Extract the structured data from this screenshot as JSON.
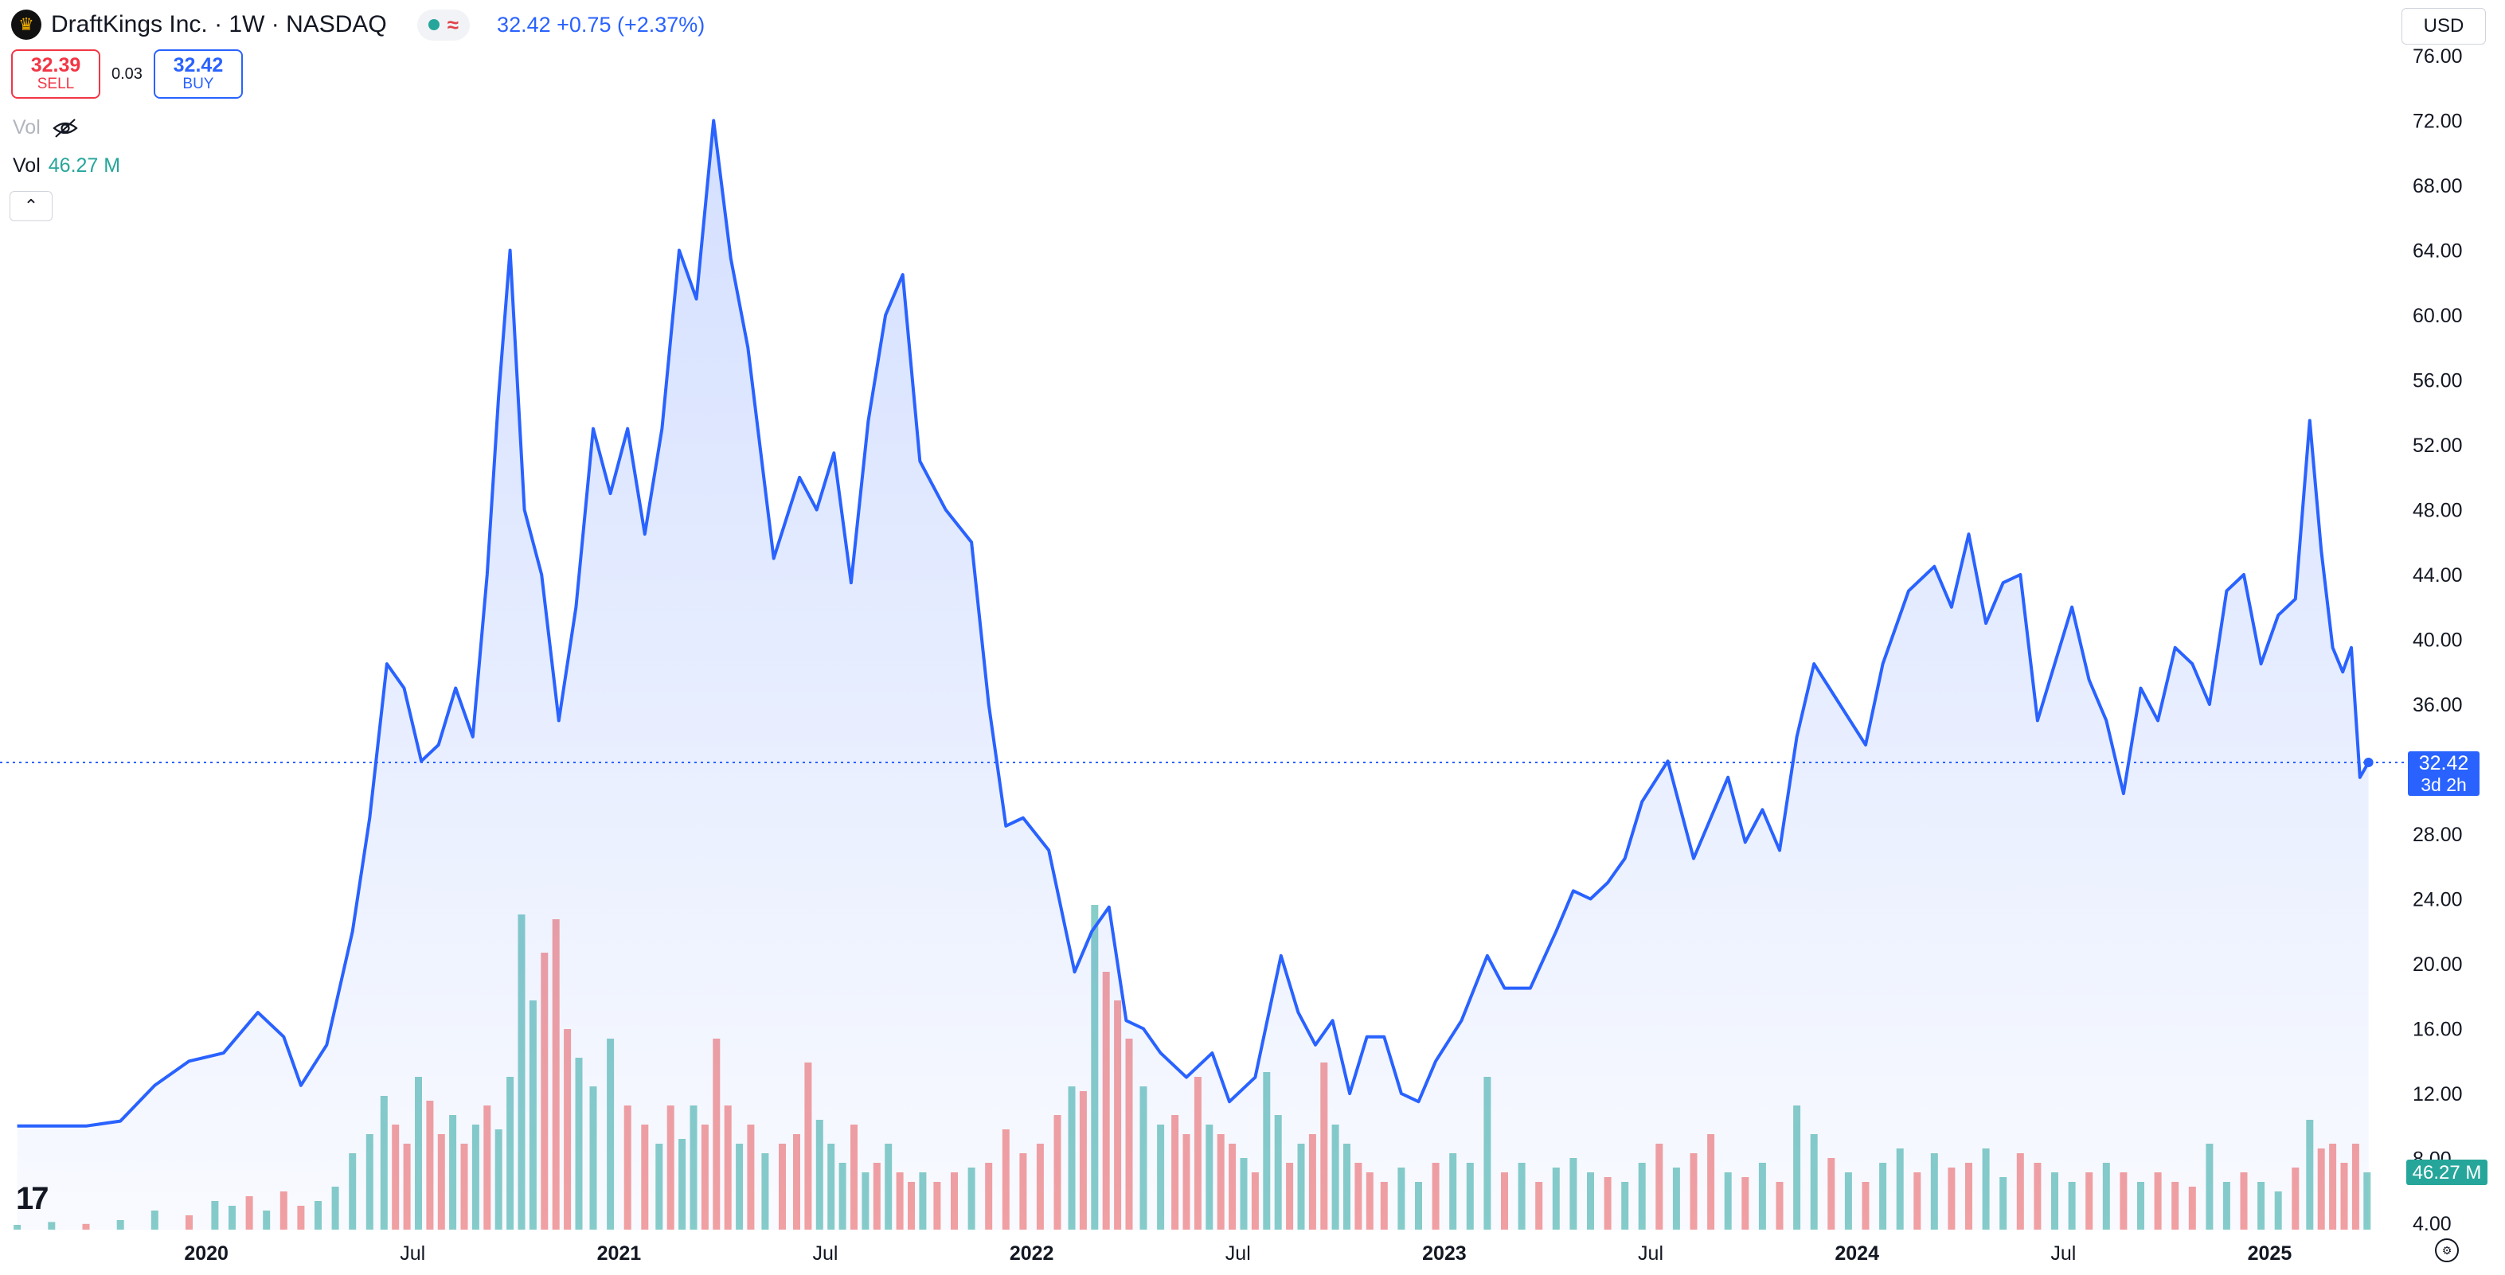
{
  "header": {
    "symbol_title": "DraftKings Inc. · 1W · NASDAQ",
    "wave_icon": "≈",
    "last_price": "32.42",
    "change": "+0.75 (+2.37%)"
  },
  "trade": {
    "sell_price": "32.39",
    "sell_label": "SELL",
    "spread": "0.03",
    "buy_price": "32.42",
    "buy_label": "BUY"
  },
  "volume_legend": {
    "label_hidden": "Vol",
    "label": "Vol",
    "value": "46.27 M"
  },
  "currency": "USD",
  "price_tag": {
    "price": "32.42",
    "countdown": "3d 2h"
  },
  "volume_tag": "46.27 M",
  "colors": {
    "line": "#2962ff",
    "up": "#26a69a",
    "down": "#ef5350"
  },
  "chart_data": {
    "type": "area",
    "y_ticks": [
      "4.00",
      "8.00",
      "12.00",
      "16.00",
      "20.00",
      "24.00",
      "28.00",
      "32.00",
      "36.00",
      "40.00",
      "44.00",
      "48.00",
      "52.00",
      "56.00",
      "60.00",
      "64.00",
      "68.00",
      "72.00",
      "76.00"
    ],
    "ylim": [
      4,
      76
    ],
    "x_ticks": [
      {
        "label": "2020",
        "date": "2020-01"
      },
      {
        "label": "Jul",
        "date": "2020-07"
      },
      {
        "label": "2021",
        "date": "2021-01"
      },
      {
        "label": "Jul",
        "date": "2021-07"
      },
      {
        "label": "2022",
        "date": "2022-01"
      },
      {
        "label": "Jul",
        "date": "2022-07"
      },
      {
        "label": "2023",
        "date": "2023-01"
      },
      {
        "label": "Jul",
        "date": "2023-07"
      },
      {
        "label": "2024",
        "date": "2024-01"
      },
      {
        "label": "Jul",
        "date": "2024-07"
      },
      {
        "label": "2025",
        "date": "2025-01"
      }
    ],
    "xlim": [
      "2019-07",
      "2025-04"
    ],
    "price_series": [
      [
        "2019-07",
        10.0
      ],
      [
        "2019-09",
        10.0
      ],
      [
        "2019-10",
        10.3
      ],
      [
        "2019-11",
        12.5
      ],
      [
        "2019-12",
        14.0
      ],
      [
        "2020-01",
        14.5
      ],
      [
        "2020-02",
        17.0
      ],
      [
        "2020-03",
        15.5
      ],
      [
        "2020-03",
        12.5
      ],
      [
        "2020-04",
        15.0
      ],
      [
        "2020-05",
        22.0
      ],
      [
        "2020-05",
        29.0
      ],
      [
        "2020-06",
        38.5
      ],
      [
        "2020-06",
        37.0
      ],
      [
        "2020-07",
        32.5
      ],
      [
        "2020-07",
        33.5
      ],
      [
        "2020-08",
        37.0
      ],
      [
        "2020-08",
        34.0
      ],
      [
        "2020-09",
        44.0
      ],
      [
        "2020-09",
        55.0
      ],
      [
        "2020-09",
        64.0
      ],
      [
        "2020-10",
        48.0
      ],
      [
        "2020-10",
        44.0
      ],
      [
        "2020-11",
        35.0
      ],
      [
        "2020-11",
        42.0
      ],
      [
        "2020-12",
        53.0
      ],
      [
        "2020-12",
        49.0
      ],
      [
        "2021-01",
        53.0
      ],
      [
        "2021-01",
        46.5
      ],
      [
        "2021-02",
        53.0
      ],
      [
        "2021-02",
        64.0
      ],
      [
        "2021-03",
        61.0
      ],
      [
        "2021-03",
        72.0
      ],
      [
        "2021-04",
        63.5
      ],
      [
        "2021-04",
        58.0
      ],
      [
        "2021-05",
        45.0
      ],
      [
        "2021-06",
        50.0
      ],
      [
        "2021-06",
        48.0
      ],
      [
        "2021-07",
        51.5
      ],
      [
        "2021-07",
        43.5
      ],
      [
        "2021-08",
        53.5
      ],
      [
        "2021-08",
        60.0
      ],
      [
        "2021-09",
        62.5
      ],
      [
        "2021-09",
        51.0
      ],
      [
        "2021-10",
        48.0
      ],
      [
        "2021-11",
        46.0
      ],
      [
        "2021-11",
        36.0
      ],
      [
        "2021-12",
        28.5
      ],
      [
        "2021-12",
        29.0
      ],
      [
        "2022-01",
        27.0
      ],
      [
        "2022-02",
        19.5
      ],
      [
        "2022-02",
        22.0
      ],
      [
        "2022-03",
        23.5
      ],
      [
        "2022-03",
        16.5
      ],
      [
        "2022-04",
        16.0
      ],
      [
        "2022-04",
        14.5
      ],
      [
        "2022-05",
        13.0
      ],
      [
        "2022-06",
        14.5
      ],
      [
        "2022-06",
        11.5
      ],
      [
        "2022-07",
        13.0
      ],
      [
        "2022-08",
        20.5
      ],
      [
        "2022-08",
        17.0
      ],
      [
        "2022-09",
        15.0
      ],
      [
        "2022-09",
        16.5
      ],
      [
        "2022-10",
        12.0
      ],
      [
        "2022-10",
        15.5
      ],
      [
        "2022-11",
        15.5
      ],
      [
        "2022-11",
        12.0
      ],
      [
        "2022-12",
        11.5
      ],
      [
        "2022-12",
        14.0
      ],
      [
        "2023-01",
        16.5
      ],
      [
        "2023-02",
        20.5
      ],
      [
        "2023-02",
        18.5
      ],
      [
        "2023-03",
        18.5
      ],
      [
        "2023-04",
        22.0
      ],
      [
        "2023-04",
        24.5
      ],
      [
        "2023-05",
        24.0
      ],
      [
        "2023-05",
        25.0
      ],
      [
        "2023-06",
        26.5
      ],
      [
        "2023-06",
        30.0
      ],
      [
        "2023-07",
        32.5
      ],
      [
        "2023-08",
        26.5
      ],
      [
        "2023-08",
        29.0
      ],
      [
        "2023-09",
        31.5
      ],
      [
        "2023-09",
        27.5
      ],
      [
        "2023-10",
        29.5
      ],
      [
        "2023-10",
        27.0
      ],
      [
        "2023-11",
        34.0
      ],
      [
        "2023-11",
        38.5
      ],
      [
        "2023-12",
        36.0
      ],
      [
        "2024-01",
        33.5
      ],
      [
        "2024-01",
        38.5
      ],
      [
        "2024-02",
        43.0
      ],
      [
        "2024-03",
        44.5
      ],
      [
        "2024-03",
        42.0
      ],
      [
        "2024-04",
        46.5
      ],
      [
        "2024-04",
        41.0
      ],
      [
        "2024-05",
        43.5
      ],
      [
        "2024-05",
        44.0
      ],
      [
        "2024-06",
        35.0
      ],
      [
        "2024-06",
        38.5
      ],
      [
        "2024-07",
        42.0
      ],
      [
        "2024-07",
        37.5
      ],
      [
        "2024-08",
        35.0
      ],
      [
        "2024-08",
        30.5
      ],
      [
        "2024-09",
        37.0
      ],
      [
        "2024-09",
        35.0
      ],
      [
        "2024-10",
        39.5
      ],
      [
        "2024-10",
        38.5
      ],
      [
        "2024-11",
        36.0
      ],
      [
        "2024-11",
        43.0
      ],
      [
        "2024-12",
        44.0
      ],
      [
        "2024-12",
        38.5
      ],
      [
        "2025-01",
        41.5
      ],
      [
        "2025-01",
        42.5
      ],
      [
        "2025-02",
        53.5
      ],
      [
        "2025-02",
        45.5
      ],
      [
        "2025-02",
        39.5
      ],
      [
        "2025-03",
        38.0
      ],
      [
        "2025-03",
        39.5
      ],
      [
        "2025-03",
        31.5
      ],
      [
        "2025-03",
        32.42
      ]
    ],
    "volume_series": [
      [
        "2019-07",
        0.5,
        1
      ],
      [
        "2019-08",
        0.8,
        1
      ],
      [
        "2019-09",
        0.6,
        0
      ],
      [
        "2019-10",
        1.0,
        1
      ],
      [
        "2019-11",
        2.0,
        1
      ],
      [
        "2019-12",
        1.5,
        0
      ],
      [
        "2020-01",
        3.0,
        1
      ],
      [
        "2020-01",
        2.5,
        1
      ],
      [
        "2020-02",
        3.5,
        0
      ],
      [
        "2020-02",
        2.0,
        1
      ],
      [
        "2020-03",
        4.0,
        0
      ],
      [
        "2020-03",
        2.5,
        0
      ],
      [
        "2020-04",
        3.0,
        1
      ],
      [
        "2020-04",
        4.5,
        1
      ],
      [
        "2020-05",
        8.0,
        1
      ],
      [
        "2020-05",
        10.0,
        1
      ],
      [
        "2020-06",
        14.0,
        1
      ],
      [
        "2020-06",
        11.0,
        0
      ],
      [
        "2020-06",
        9.0,
        0
      ],
      [
        "2020-07",
        16.0,
        1
      ],
      [
        "2020-07",
        13.5,
        0
      ],
      [
        "2020-07",
        10.0,
        0
      ],
      [
        "2020-08",
        12.0,
        1
      ],
      [
        "2020-08",
        9.0,
        0
      ],
      [
        "2020-08",
        11.0,
        1
      ],
      [
        "2020-09",
        13.0,
        0
      ],
      [
        "2020-09",
        10.5,
        1
      ],
      [
        "2020-09",
        16.0,
        1
      ],
      [
        "2020-10",
        33.0,
        1
      ],
      [
        "2020-10",
        24.0,
        1
      ],
      [
        "2020-10",
        29.0,
        0
      ],
      [
        "2020-11",
        32.5,
        0
      ],
      [
        "2020-11",
        21.0,
        0
      ],
      [
        "2020-11",
        18.0,
        1
      ],
      [
        "2020-12",
        15.0,
        1
      ],
      [
        "2020-12",
        20.0,
        1
      ],
      [
        "2021-01",
        13.0,
        0
      ],
      [
        "2021-01",
        11.0,
        0
      ],
      [
        "2021-02",
        9.0,
        1
      ],
      [
        "2021-02",
        13.0,
        0
      ],
      [
        "2021-02",
        9.5,
        1
      ],
      [
        "2021-03",
        13.0,
        1
      ],
      [
        "2021-03",
        11.0,
        0
      ],
      [
        "2021-03",
        20.0,
        0
      ],
      [
        "2021-04",
        13.0,
        0
      ],
      [
        "2021-04",
        9.0,
        1
      ],
      [
        "2021-04",
        11.0,
        0
      ],
      [
        "2021-05",
        8.0,
        1
      ],
      [
        "2021-05",
        9.0,
        0
      ],
      [
        "2021-06",
        10.0,
        0
      ],
      [
        "2021-06",
        17.5,
        0
      ],
      [
        "2021-06",
        11.5,
        1
      ],
      [
        "2021-07",
        9.0,
        1
      ],
      [
        "2021-07",
        7.0,
        1
      ],
      [
        "2021-07",
        11.0,
        0
      ],
      [
        "2021-08",
        6.0,
        1
      ],
      [
        "2021-08",
        7.0,
        0
      ],
      [
        "2021-08",
        9.0,
        1
      ],
      [
        "2021-09",
        6.0,
        0
      ],
      [
        "2021-09",
        5.0,
        0
      ],
      [
        "2021-09",
        6.0,
        1
      ],
      [
        "2021-10",
        5.0,
        0
      ],
      [
        "2021-10",
        6.0,
        0
      ],
      [
        "2021-11",
        6.5,
        1
      ],
      [
        "2021-11",
        7.0,
        0
      ],
      [
        "2021-12",
        10.5,
        0
      ],
      [
        "2021-12",
        8.0,
        0
      ],
      [
        "2022-01",
        9.0,
        0
      ],
      [
        "2022-01",
        12.0,
        0
      ],
      [
        "2022-02",
        15.0,
        1
      ],
      [
        "2022-02",
        14.5,
        0
      ],
      [
        "2022-02",
        34.0,
        1
      ],
      [
        "2022-03",
        27.0,
        0
      ],
      [
        "2022-03",
        24.0,
        0
      ],
      [
        "2022-03",
        20.0,
        0
      ],
      [
        "2022-04",
        15.0,
        1
      ],
      [
        "2022-04",
        11.0,
        1
      ],
      [
        "2022-05",
        12.0,
        0
      ],
      [
        "2022-05",
        10.0,
        0
      ],
      [
        "2022-05",
        16.0,
        0
      ],
      [
        "2022-06",
        11.0,
        1
      ],
      [
        "2022-06",
        10.0,
        0
      ],
      [
        "2022-06",
        9.0,
        0
      ],
      [
        "2022-07",
        7.5,
        1
      ],
      [
        "2022-07",
        6.0,
        0
      ],
      [
        "2022-07",
        16.5,
        1
      ],
      [
        "2022-08",
        12.0,
        1
      ],
      [
        "2022-08",
        7.0,
        0
      ],
      [
        "2022-08",
        9.0,
        1
      ],
      [
        "2022-09",
        10.0,
        0
      ],
      [
        "2022-09",
        17.5,
        0
      ],
      [
        "2022-09",
        11.0,
        1
      ],
      [
        "2022-10",
        9.0,
        1
      ],
      [
        "2022-10",
        7.0,
        0
      ],
      [
        "2022-10",
        6.0,
        0
      ],
      [
        "2022-11",
        5.0,
        0
      ],
      [
        "2022-11",
        6.5,
        1
      ],
      [
        "2022-12",
        5.0,
        1
      ],
      [
        "2022-12",
        7.0,
        0
      ],
      [
        "2023-01",
        8.0,
        1
      ],
      [
        "2023-01",
        7.0,
        1
      ],
      [
        "2023-02",
        16.0,
        1
      ],
      [
        "2023-02",
        6.0,
        0
      ],
      [
        "2023-03",
        7.0,
        1
      ],
      [
        "2023-03",
        5.0,
        0
      ],
      [
        "2023-04",
        6.5,
        1
      ],
      [
        "2023-04",
        7.5,
        1
      ],
      [
        "2023-05",
        6.0,
        1
      ],
      [
        "2023-05",
        5.5,
        0
      ],
      [
        "2023-06",
        5.0,
        1
      ],
      [
        "2023-06",
        7.0,
        1
      ],
      [
        "2023-07",
        9.0,
        0
      ],
      [
        "2023-07",
        6.5,
        1
      ],
      [
        "2023-08",
        8.0,
        0
      ],
      [
        "2023-08",
        10.0,
        0
      ],
      [
        "2023-09",
        6.0,
        1
      ],
      [
        "2023-09",
        5.5,
        0
      ],
      [
        "2023-10",
        7.0,
        1
      ],
      [
        "2023-10",
        5.0,
        0
      ],
      [
        "2023-11",
        13.0,
        1
      ],
      [
        "2023-11",
        10.0,
        1
      ],
      [
        "2023-12",
        7.5,
        0
      ],
      [
        "2023-12",
        6.0,
        1
      ],
      [
        "2024-01",
        5.0,
        0
      ],
      [
        "2024-01",
        7.0,
        1
      ],
      [
        "2024-02",
        8.5,
        1
      ],
      [
        "2024-02",
        6.0,
        0
      ],
      [
        "2024-03",
        8.0,
        1
      ],
      [
        "2024-03",
        6.5,
        0
      ],
      [
        "2024-04",
        7.0,
        0
      ],
      [
        "2024-04",
        8.5,
        1
      ],
      [
        "2024-05",
        5.5,
        1
      ],
      [
        "2024-05",
        8.0,
        0
      ],
      [
        "2024-06",
        7.0,
        0
      ],
      [
        "2024-06",
        6.0,
        1
      ],
      [
        "2024-07",
        5.0,
        1
      ],
      [
        "2024-07",
        6.0,
        0
      ],
      [
        "2024-08",
        7.0,
        1
      ],
      [
        "2024-08",
        6.0,
        0
      ],
      [
        "2024-09",
        5.0,
        1
      ],
      [
        "2024-09",
        6.0,
        0
      ],
      [
        "2024-10",
        5.0,
        0
      ],
      [
        "2024-10",
        4.5,
        0
      ],
      [
        "2024-11",
        9.0,
        1
      ],
      [
        "2024-11",
        5.0,
        1
      ],
      [
        "2024-12",
        6.0,
        0
      ],
      [
        "2024-12",
        5.0,
        1
      ],
      [
        "2025-01",
        4.0,
        1
      ],
      [
        "2025-01",
        6.5,
        0
      ],
      [
        "2025-02",
        11.5,
        1
      ],
      [
        "2025-02",
        8.5,
        0
      ],
      [
        "2025-02",
        9.0,
        0
      ],
      [
        "2025-03",
        7.0,
        0
      ],
      [
        "2025-03",
        9.0,
        0
      ],
      [
        "2025-03",
        6.0,
        1
      ]
    ]
  }
}
